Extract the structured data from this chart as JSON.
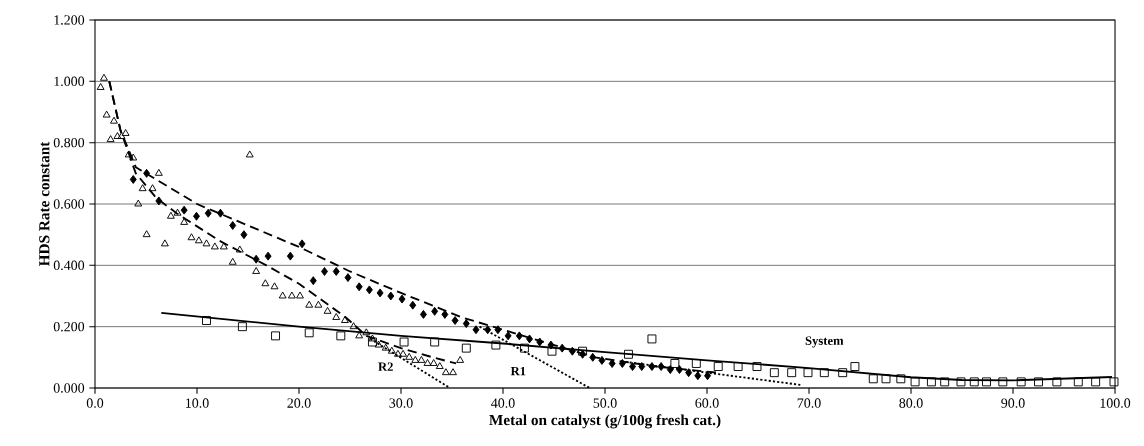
{
  "chart_data": {
    "type": "scatter",
    "xlabel": "Metal on catalyst (g/100g fresh cat.)",
    "ylabel": "HDS Rate constant",
    "xlim": [
      0,
      100
    ],
    "ylim": [
      0,
      1.2
    ],
    "grid": "y",
    "xticks": [
      {
        "value": 0,
        "label": "0.0"
      },
      {
        "value": 10,
        "label": "10.0"
      },
      {
        "value": 20,
        "label": "20.0"
      },
      {
        "value": 30,
        "label": "30.0"
      },
      {
        "value": 40,
        "label": "40.0"
      },
      {
        "value": 50,
        "label": "50.0"
      },
      {
        "value": 60,
        "label": "60.0"
      },
      {
        "value": 70,
        "label": "70.0"
      },
      {
        "value": 80,
        "label": "80.0"
      },
      {
        "value": 90,
        "label": "90.0"
      },
      {
        "value": 100,
        "label": "100.0"
      }
    ],
    "yticks": [
      {
        "value": 0,
        "label": "0.000"
      },
      {
        "value": 0.2,
        "label": "0.200"
      },
      {
        "value": 0.4,
        "label": "0.400"
      },
      {
        "value": 0.6,
        "label": "0.600"
      },
      {
        "value": 0.8,
        "label": "0.800"
      },
      {
        "value": 1.0,
        "label": "1.000"
      },
      {
        "value": 1.2,
        "label": "1.200"
      }
    ],
    "series": [
      {
        "marker": "triangle",
        "color": "#000000",
        "x": [
          0.55,
          0.88,
          1.14,
          1.53,
          1.86,
          2.2,
          2.6,
          3.0,
          3.3,
          3.75,
          4.24,
          4.67,
          5.06,
          5.64,
          6.26,
          6.85,
          7.44,
          8.09,
          8.74,
          9.46,
          10.18,
          10.93,
          11.75,
          12.63,
          13.5,
          14.2,
          15.17,
          15.8,
          16.7,
          17.6,
          18.4,
          19.3,
          20.1,
          21.0,
          21.9,
          22.8,
          23.65,
          24.5,
          25.35,
          25.9,
          26.6,
          27.2,
          27.8,
          28.5,
          29.1,
          29.7,
          30.2,
          30.8,
          31.4,
          32.0,
          32.6,
          33.2,
          33.8,
          34.4,
          35.1,
          35.8
        ],
        "values": [
          0.98,
          1.01,
          0.89,
          0.81,
          0.87,
          0.82,
          0.82,
          0.83,
          0.76,
          0.75,
          0.6,
          0.65,
          0.5,
          0.65,
          0.7,
          0.47,
          0.56,
          0.57,
          0.54,
          0.49,
          0.48,
          0.47,
          0.46,
          0.46,
          0.41,
          0.45,
          0.76,
          0.38,
          0.34,
          0.33,
          0.3,
          0.3,
          0.3,
          0.27,
          0.27,
          0.25,
          0.23,
          0.22,
          0.2,
          0.17,
          0.18,
          0.16,
          0.14,
          0.13,
          0.12,
          0.11,
          0.11,
          0.1,
          0.09,
          0.09,
          0.08,
          0.08,
          0.07,
          0.05,
          0.05,
          0.09
        ]
      },
      {
        "marker": "diamond",
        "color": "#000000",
        "x": [
          3.75,
          5.06,
          6.26,
          8.74,
          9.95,
          11.1,
          12.3,
          13.5,
          14.6,
          15.8,
          16.97,
          19.15,
          20.3,
          21.4,
          22.5,
          23.65,
          24.8,
          25.9,
          26.9,
          27.95,
          29.0,
          30.1,
          31.15,
          32.2,
          33.3,
          34.3,
          35.3,
          36.4,
          37.35,
          38.5,
          39.5,
          40.5,
          41.6,
          42.6,
          43.6,
          44.7,
          45.8,
          46.8,
          47.8,
          48.8,
          49.7,
          50.7,
          51.7,
          52.7,
          53.6,
          54.6,
          55.5,
          56.4,
          57.3,
          58.2,
          59.1,
          60.05
        ],
        "values": [
          0.68,
          0.7,
          0.61,
          0.58,
          0.56,
          0.57,
          0.57,
          0.53,
          0.5,
          0.42,
          0.43,
          0.43,
          0.47,
          0.35,
          0.38,
          0.38,
          0.36,
          0.33,
          0.32,
          0.31,
          0.3,
          0.29,
          0.27,
          0.24,
          0.25,
          0.24,
          0.22,
          0.21,
          0.19,
          0.19,
          0.19,
          0.17,
          0.17,
          0.16,
          0.15,
          0.14,
          0.13,
          0.12,
          0.11,
          0.1,
          0.09,
          0.08,
          0.08,
          0.07,
          0.07,
          0.07,
          0.07,
          0.06,
          0.06,
          0.05,
          0.04,
          0.04
        ]
      },
      {
        "marker": "square",
        "color": "#000000",
        "x": [
          10.93,
          14.45,
          17.7,
          21.0,
          24.1,
          27.2,
          30.3,
          33.3,
          36.4,
          39.3,
          42.1,
          44.8,
          47.8,
          52.3,
          54.6,
          56.85,
          58.95,
          61.1,
          63.05,
          64.9,
          66.6,
          68.3,
          69.9,
          71.5,
          73.3,
          74.5,
          76.3,
          77.55,
          79.0,
          80.4,
          82.0,
          83.3,
          84.9,
          86.2,
          87.4,
          89.0,
          90.8,
          92.5,
          94.3,
          96.4,
          98.1,
          99.9
        ],
        "values": [
          0.22,
          0.2,
          0.17,
          0.18,
          0.17,
          0.15,
          0.15,
          0.15,
          0.13,
          0.14,
          0.13,
          0.12,
          0.12,
          0.11,
          0.16,
          0.08,
          0.08,
          0.07,
          0.07,
          0.07,
          0.05,
          0.05,
          0.05,
          0.05,
          0.05,
          0.07,
          0.03,
          0.03,
          0.03,
          0.02,
          0.02,
          0.02,
          0.02,
          0.02,
          0.02,
          0.02,
          0.02,
          0.02,
          0.02,
          0.02,
          0.02,
          0.02
        ]
      },
      {
        "type": "line",
        "line_style": "dashed",
        "color": "#000000",
        "x": [
          1.4,
          2.5,
          4,
          6,
          8,
          12.2,
          16.8,
          20,
          24.6,
          26.6,
          30,
          33.1,
          35.4
        ],
        "values": [
          1.0,
          0.84,
          0.7,
          0.62,
          0.57,
          0.48,
          0.4,
          0.34,
          0.23,
          0.17,
          0.13,
          0.1,
          0.08
        ]
      },
      {
        "type": "line",
        "line_style": "dashed",
        "color": "#000000",
        "x": [
          1.4,
          2.5,
          4,
          10,
          15,
          20,
          25,
          30,
          36,
          43,
          49,
          55,
          61
        ],
        "values": [
          1.0,
          0.84,
          0.72,
          0.6,
          0.53,
          0.46,
          0.38,
          0.31,
          0.23,
          0.16,
          0.1,
          0.07,
          0.05
        ]
      },
      {
        "type": "line",
        "line_style": "dotted",
        "color": "#000000",
        "x": [
          27,
          34.8
        ],
        "values": [
          0.16,
          0.0
        ]
      },
      {
        "type": "line",
        "line_style": "dotted",
        "color": "#000000",
        "x": [
          37.7,
          48.5
        ],
        "values": [
          0.2,
          0.0
        ]
      },
      {
        "type": "line",
        "line_style": "dotted",
        "color": "#000000",
        "x": [
          52,
          69.2
        ],
        "values": [
          0.085,
          0.01
        ]
      },
      {
        "type": "line",
        "line_style": "solid",
        "color": "#000000",
        "x": [
          6.5,
          20,
          30,
          40,
          50,
          60,
          70,
          80,
          85,
          90,
          99.7
        ],
        "values": [
          0.245,
          0.2,
          0.17,
          0.145,
          0.117,
          0.09,
          0.065,
          0.035,
          0.026,
          0.025,
          0.036
        ]
      }
    ],
    "annotations": [
      "R2",
      "R1",
      "System"
    ]
  }
}
